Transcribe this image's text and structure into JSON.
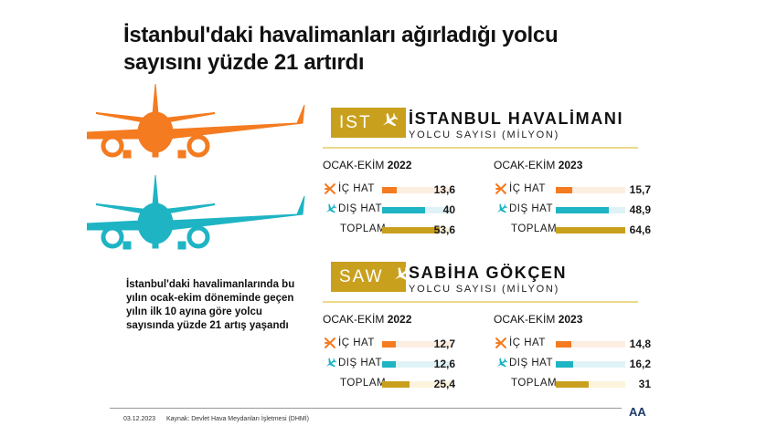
{
  "title_line1": "İstanbul'daki havalimanları ağırladığı yolcu",
  "title_line2": "sayısını yüzde 21 artırdı",
  "description": "İstanbul'daki havalimanlarında bu yılın ocak-ekim döneminde geçen yılın ilk 10 ayına göre yolcu sayısında yüzde 21 artış yaşandı",
  "footer": {
    "date": "03.12.2023",
    "source": "Kaynak: Devlet Hava Meydanları İşletmesi (DHMİ)",
    "logo": "AA"
  },
  "colors": {
    "domestic": "#f47b20",
    "international": "#1eb4c4",
    "total": "#c9a01e",
    "badge": "#c9a01e"
  },
  "icons": {
    "domestic": "plane-takeoff-icon",
    "international": "plane-icon",
    "badge": "plane-icon"
  },
  "chart_data": [
    {
      "type": "bar",
      "code": "IST",
      "title": "İSTANBUL HAVALİMANI",
      "subtitle": "YOLCU SAYISI (MİLYON)",
      "max": 64.6,
      "groups": [
        {
          "period": "OCAK-EKİM",
          "year": "2022",
          "rows": [
            {
              "label": "İÇ HAT",
              "value": 13.6,
              "display": "13,6"
            },
            {
              "label": "DIŞ HAT",
              "value": 40,
              "display": "40"
            },
            {
              "label": "TOPLAM",
              "value": 53.6,
              "display": "53,6"
            }
          ]
        },
        {
          "period": "OCAK-EKİM",
          "year": "2023",
          "rows": [
            {
              "label": "İÇ HAT",
              "value": 15.7,
              "display": "15,7"
            },
            {
              "label": "DIŞ HAT",
              "value": 48.9,
              "display": "48,9"
            },
            {
              "label": "TOPLAM",
              "value": 64.6,
              "display": "64,6"
            }
          ]
        }
      ]
    },
    {
      "type": "bar",
      "code": "SAW",
      "title": "SABİHA GÖKÇEN",
      "subtitle": "YOLCU SAYISI (MİLYON)",
      "max": 64.6,
      "groups": [
        {
          "period": "OCAK-EKİM",
          "year": "2022",
          "rows": [
            {
              "label": "İÇ HAT",
              "value": 12.7,
              "display": "12,7"
            },
            {
              "label": "DIŞ HAT",
              "value": 12.6,
              "display": "12,6"
            },
            {
              "label": "TOPLAM",
              "value": 25.4,
              "display": "25,4"
            }
          ]
        },
        {
          "period": "OCAK-EKİM",
          "year": "2023",
          "rows": [
            {
              "label": "İÇ HAT",
              "value": 14.8,
              "display": "14,8"
            },
            {
              "label": "DIŞ HAT",
              "value": 16.2,
              "display": "16,2"
            },
            {
              "label": "TOPLAM",
              "value": 31,
              "display": "31"
            }
          ]
        }
      ]
    }
  ]
}
